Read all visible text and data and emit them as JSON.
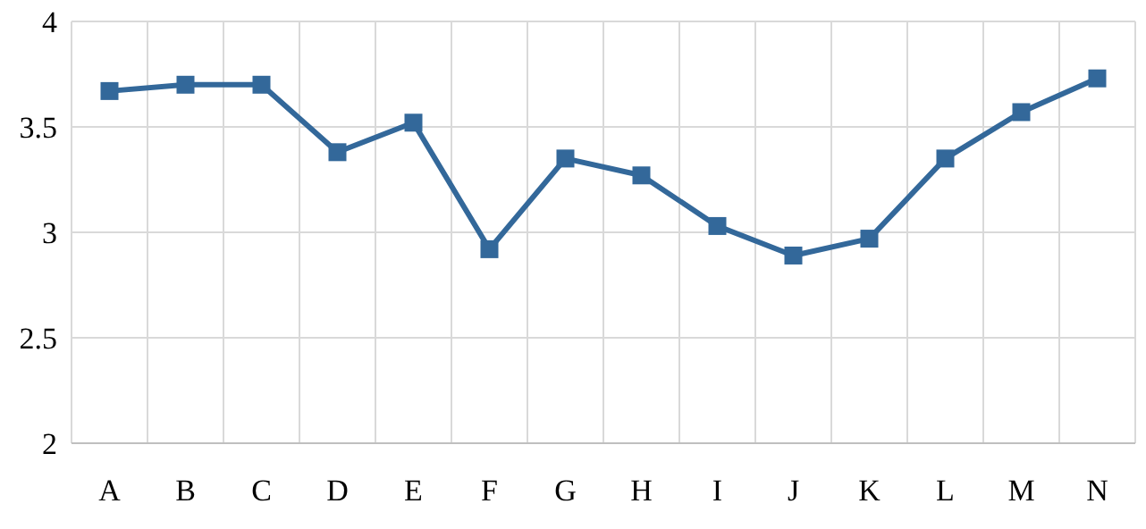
{
  "chart_data": {
    "type": "line",
    "categories": [
      "A",
      "B",
      "C",
      "D",
      "E",
      "F",
      "G",
      "H",
      "I",
      "J",
      "K",
      "L",
      "M",
      "N"
    ],
    "series": [
      {
        "color": "#33689a",
        "values": [
          3.67,
          3.7,
          3.7,
          3.38,
          3.52,
          2.92,
          3.35,
          3.27,
          3.03,
          2.89,
          2.97,
          3.35,
          3.57,
          3.73
        ]
      }
    ],
    "ylim": [
      2,
      4
    ],
    "yticks": [
      2,
      2.5,
      3,
      3.5,
      4
    ],
    "grid": true,
    "marker": "square",
    "line_style": "solid"
  }
}
